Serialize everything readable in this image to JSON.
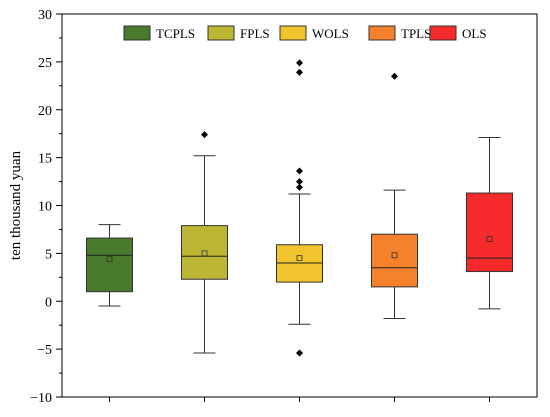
{
  "chart_data": {
    "type": "box",
    "title": "",
    "xlabel": "",
    "ylabel": "ten thousand yuan",
    "ylim": [
      -10,
      30
    ],
    "yticks": [
      -10,
      -5,
      0,
      5,
      10,
      15,
      20,
      25,
      30
    ],
    "grid": false,
    "legend_position": "top-center",
    "series": [
      {
        "name": "TCPLS",
        "color": "#4a7a2c",
        "whisker_low": -0.5,
        "q1": 1.0,
        "median": 4.8,
        "q3": 6.6,
        "whisker_high": 8.0,
        "mean": 4.4,
        "outliers": []
      },
      {
        "name": "FPLS",
        "color": "#bdb635",
        "whisker_low": -5.4,
        "q1": 2.3,
        "median": 4.7,
        "q3": 7.9,
        "whisker_high": 15.2,
        "mean": 5.0,
        "outliers": [
          17.4
        ]
      },
      {
        "name": "WOLS",
        "color": "#f0c42a",
        "whisker_low": -2.4,
        "q1": 2.0,
        "median": 4.0,
        "q3": 5.9,
        "whisker_high": 11.2,
        "mean": 4.5,
        "outliers": [
          -5.4,
          11.9,
          12.5,
          13.6,
          23.9,
          24.9
        ]
      },
      {
        "name": "TPLS",
        "color": "#f5812c",
        "whisker_low": -1.8,
        "q1": 1.5,
        "median": 3.5,
        "q3": 7.0,
        "whisker_high": 11.6,
        "mean": 4.8,
        "outliers": [
          23.5
        ]
      },
      {
        "name": "OLS",
        "color": "#f52a2a",
        "whisker_low": -0.8,
        "q1": 3.1,
        "median": 4.5,
        "q3": 11.3,
        "whisker_high": 17.1,
        "mean": 6.5,
        "outliers": []
      }
    ]
  }
}
